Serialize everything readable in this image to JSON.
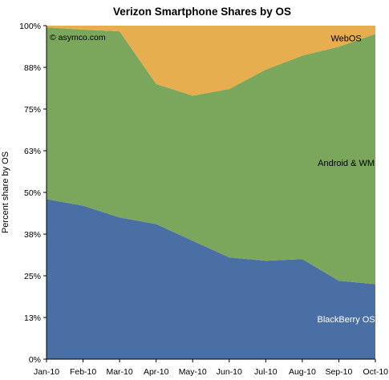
{
  "chart_data": {
    "type": "area",
    "stacked": true,
    "percent": true,
    "title": "Verizon Smartphone Shares by OS",
    "ylabel": "Percent share by OS",
    "xlabel": "",
    "watermark": "© asymco.com",
    "categories": [
      "Jan-10",
      "Feb-10",
      "Mar-10",
      "Apr-10",
      "May-10",
      "Jun-10",
      "Jul-10",
      "Aug-10",
      "Sep-10",
      "Oct-10"
    ],
    "y_tick_labels": [
      "0%",
      "13%",
      "25%",
      "38%",
      "50%",
      "63%",
      "75%",
      "88%",
      "100%"
    ],
    "ylim": [
      0,
      100
    ],
    "grid": false,
    "series": [
      {
        "name": "BlackBerry OS",
        "color": "#4a6fa5",
        "label_color": "#ffffff",
        "values": [
          48,
          46,
          42.5,
          40.5,
          35.5,
          30.5,
          29.5,
          30.0,
          23.5,
          22.5
        ]
      },
      {
        "name": "Android & WM",
        "color": "#7aa75b",
        "label_color": "#000000",
        "values": [
          51.5,
          52.8,
          55.8,
          42.0,
          43.5,
          50.5,
          57.3,
          61.0,
          70.2,
          75.0
        ]
      },
      {
        "name": "WebOS",
        "color": "#e7ae4f",
        "label_color": "#000000",
        "values": [
          0.5,
          1.2,
          1.7,
          17.5,
          21.0,
          19.0,
          13.2,
          9.0,
          6.3,
          2.5
        ]
      }
    ]
  }
}
